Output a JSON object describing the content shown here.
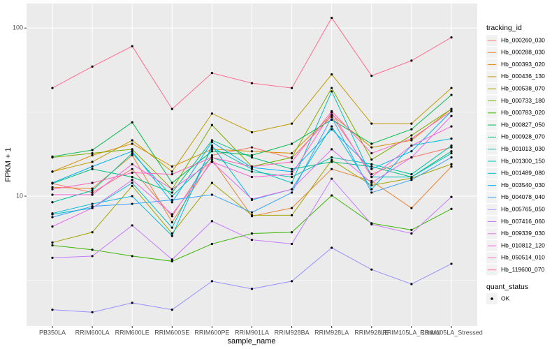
{
  "chart_data": {
    "type": "line",
    "x_label": "sample_name",
    "y_label": "FPKM + 1",
    "log_y": true,
    "grid": true,
    "legend_title": "tracking_id",
    "legend_position": "right",
    "point_legend_title": "quant_status",
    "point_legend_label": "OK",
    "point_color": "#000000",
    "categories": [
      "PB350LA",
      "RRIM600LA",
      "RRIM600LE",
      "RRIM600SE",
      "RRIM600PE",
      "RRIM901LA",
      "RRIM928BA",
      "RRIM928LA",
      "RRIM928LE",
      "RRIM105LA_Control",
      "RRIM105LA_Stressed"
    ],
    "ylim": [
      1.69,
      140
    ],
    "yticks": [
      10,
      100
    ],
    "series": [
      {
        "name": "Hb_000260_030",
        "color": "#F8766D",
        "values": [
          11.9,
          10.5,
          14.5,
          7.6,
          17.5,
          19.5,
          16.8,
          30,
          13.5,
          17,
          19.5
        ]
      },
      {
        "name": "Hb_000288_030",
        "color": "#EA8331",
        "values": [
          11.3,
          11.1,
          17.5,
          7.0,
          16.5,
          7.6,
          8.5,
          14.5,
          12.3,
          8.5,
          15.0
        ]
      },
      {
        "name": "Hb_000393_020",
        "color": "#D89000",
        "values": [
          14.0,
          17.5,
          20.5,
          15.0,
          19.0,
          18.5,
          18.0,
          30.5,
          19.5,
          21.5,
          33.0
        ]
      },
      {
        "name": "Hb_000436_130",
        "color": "#C09B00",
        "values": [
          14.0,
          16.0,
          21.5,
          14.0,
          31.0,
          24.0,
          27.0,
          53.0,
          27.0,
          27.0,
          44.0
        ]
      },
      {
        "name": "Hb_000538_070",
        "color": "#A3A500",
        "values": [
          5.3,
          6.1,
          11.5,
          6.0,
          12.0,
          7.7,
          7.7,
          16.4,
          11.6,
          12.8,
          15.5
        ]
      },
      {
        "name": "Hb_000733_180",
        "color": "#7CAE00",
        "values": [
          17.0,
          18.0,
          19.0,
          11.0,
          26.5,
          15.0,
          17.0,
          44.0,
          16.5,
          23.0,
          33.0
        ]
      },
      {
        "name": "Hb_000783_020",
        "color": "#39B600",
        "values": [
          5.1,
          4.8,
          4.4,
          4.1,
          5.2,
          6.0,
          6.1,
          10.1,
          6.9,
          6.3,
          8.4
        ]
      },
      {
        "name": "Hb_000827_050",
        "color": "#00BB4E",
        "values": [
          17.2,
          18.8,
          27.5,
          12.0,
          18.5,
          17.5,
          20.5,
          28.5,
          20.5,
          25.0,
          40.0
        ]
      },
      {
        "name": "Hb_000928_070",
        "color": "#00BF7D",
        "values": [
          11.9,
          14.5,
          13.0,
          10.5,
          21.5,
          17.0,
          14.5,
          16.0,
          15.0,
          13.0,
          18.5
        ]
      },
      {
        "name": "Hb_001013_030",
        "color": "#00C1A3",
        "values": [
          9.2,
          10.8,
          18.0,
          10.0,
          17.0,
          14.0,
          13.0,
          17.0,
          15.5,
          13.5,
          20.0
        ]
      },
      {
        "name": "Hb_001300_150",
        "color": "#00BFC4",
        "values": [
          7.8,
          8.5,
          12.0,
          6.5,
          19.5,
          14.5,
          12.0,
          42.0,
          13.0,
          13.0,
          18.0
        ]
      },
      {
        "name": "Hb_001489_080",
        "color": "#00BAE0",
        "values": [
          7.9,
          9.0,
          10.0,
          5.8,
          20.0,
          9.5,
          11.0,
          26.0,
          11.0,
          20.0,
          22.0
        ]
      },
      {
        "name": "Hb_003540_030",
        "color": "#00B0F6",
        "values": [
          12.0,
          15.0,
          18.5,
          9.2,
          21.0,
          14.8,
          14.0,
          25.0,
          14.5,
          18.5,
          32.0
        ]
      },
      {
        "name": "Hb_004078_040",
        "color": "#35A2FF",
        "values": [
          7.5,
          8.7,
          9.0,
          9.5,
          10.2,
          8.0,
          10.5,
          29.5,
          10.5,
          12.5,
          17.0
        ]
      },
      {
        "name": "Hb_005765_050",
        "color": "#9590FF",
        "values": [
          2.11,
          2.04,
          2.32,
          2.11,
          3.12,
          2.81,
          3.12,
          4.93,
          3.66,
          3.0,
          3.96
        ]
      },
      {
        "name": "Hb_007416_060",
        "color": "#C77CFF",
        "values": [
          4.3,
          4.4,
          6.7,
          4.2,
          7.1,
          5.5,
          5.2,
          12.7,
          6.8,
          6.0,
          9.9
        ]
      },
      {
        "name": "Hb_009339_030",
        "color": "#E76BF3",
        "values": [
          6.6,
          8.5,
          12.5,
          7.8,
          16.0,
          9.6,
          11.0,
          19.0,
          12.0,
          17.0,
          30.0
        ]
      },
      {
        "name": "Hb_010812_120",
        "color": "#FA62DB",
        "values": [
          10.2,
          10.2,
          15.5,
          11.0,
          16.0,
          13.0,
          13.5,
          31.5,
          13.0,
          20.0,
          26.0
        ]
      },
      {
        "name": "Hb_050514_010",
        "color": "#FF62BC",
        "values": [
          11.0,
          12.0,
          13.8,
          13.5,
          17.0,
          15.0,
          16.0,
          32.0,
          18.0,
          22.0,
          32.0
        ]
      },
      {
        "name": "Hb_119600_070",
        "color": "#FF6C91",
        "values": [
          44,
          59,
          78,
          33,
          54,
          47,
          44,
          115,
          52,
          64,
          88
        ]
      }
    ]
  }
}
